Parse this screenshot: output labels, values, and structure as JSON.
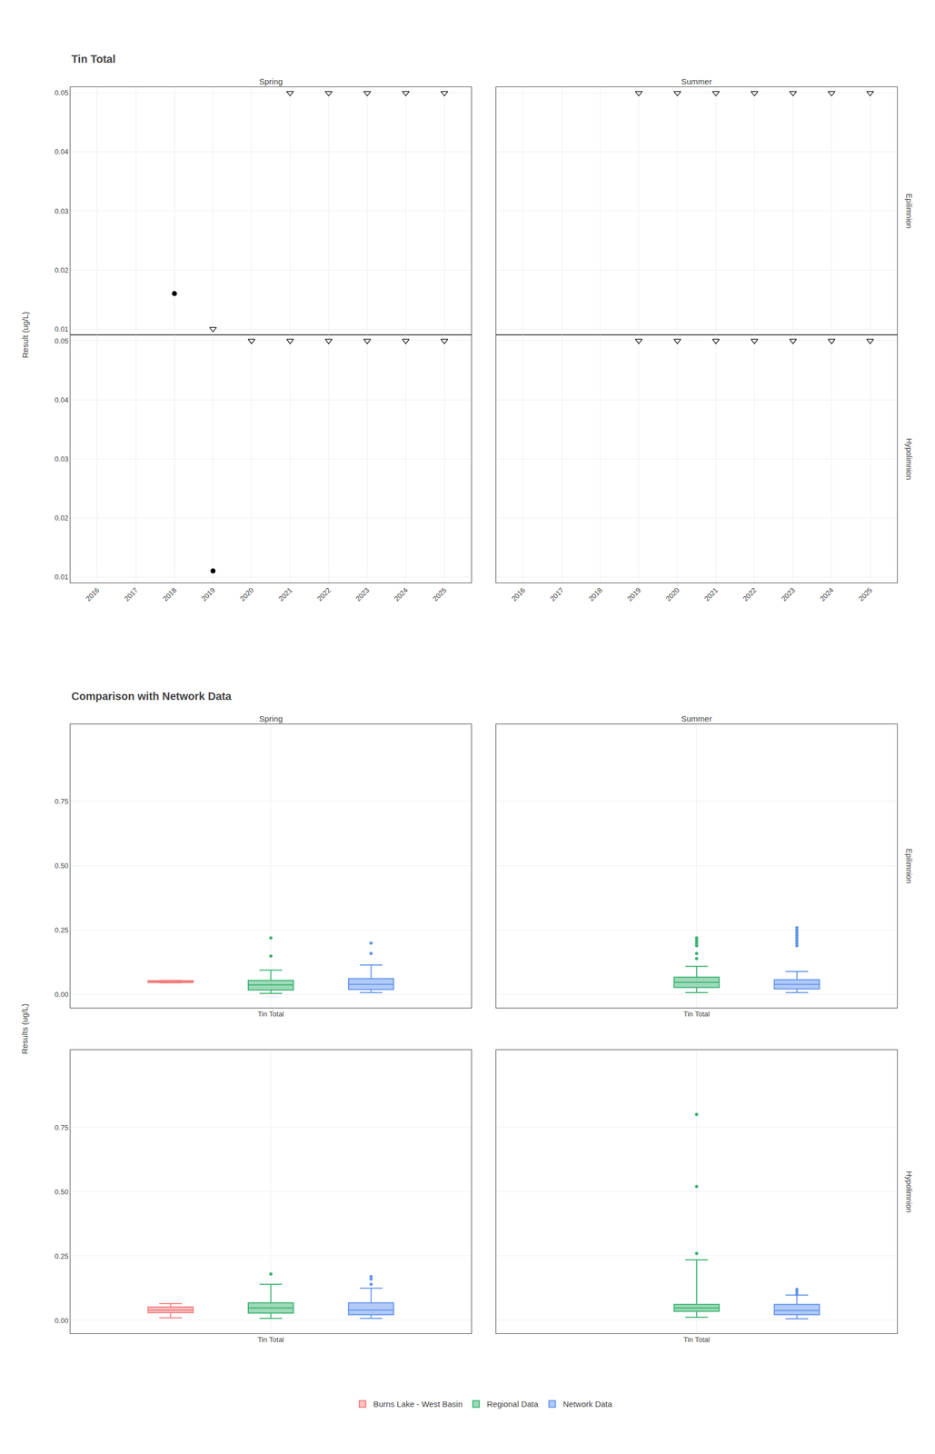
{
  "chart_data": [
    {
      "type": "scatter",
      "title": "Tin Total",
      "ylabel": "Result (ug/L)",
      "columns": [
        "Spring",
        "Summer"
      ],
      "rows": [
        "Epilimnion",
        "Hypolimnion"
      ],
      "xlim": [
        2015.3,
        2025.7
      ],
      "xticks": [
        2016,
        2017,
        2018,
        2019,
        2020,
        2021,
        2022,
        2023,
        2024,
        2025
      ],
      "ylim": [
        0.009,
        0.051
      ],
      "yticks": [
        0.01,
        0.02,
        0.03,
        0.04,
        0.05
      ],
      "grid": true,
      "panels": [
        [
          {
            "series": [
              {
                "marker": "circle",
                "color": "#000000",
                "x": [
                  2018
                ],
                "values": [
                  0.016
                ]
              },
              {
                "marker": "triangle-down-open",
                "color": "#000000",
                "x": [
                  2019,
                  2021,
                  2022,
                  2023,
                  2024,
                  2025
                ],
                "values": [
                  0.01,
                  0.05,
                  0.05,
                  0.05,
                  0.05,
                  0.05
                ]
              }
            ]
          },
          {
            "series": [
              {
                "marker": "triangle-down-open",
                "color": "#000000",
                "x": [
                  2019,
                  2020,
                  2021,
                  2022,
                  2023,
                  2024,
                  2025
                ],
                "values": [
                  0.05,
                  0.05,
                  0.05,
                  0.05,
                  0.05,
                  0.05,
                  0.05
                ]
              }
            ]
          }
        ],
        [
          {
            "series": [
              {
                "marker": "circle",
                "color": "#000000",
                "x": [
                  2019
                ],
                "values": [
                  0.011
                ]
              },
              {
                "marker": "triangle-down-open",
                "color": "#000000",
                "x": [
                  2020,
                  2021,
                  2022,
                  2023,
                  2024,
                  2025
                ],
                "values": [
                  0.05,
                  0.05,
                  0.05,
                  0.05,
                  0.05,
                  0.05
                ]
              }
            ]
          },
          {
            "series": [
              {
                "marker": "triangle-down-open",
                "color": "#000000",
                "x": [
                  2019,
                  2020,
                  2021,
                  2022,
                  2023,
                  2024,
                  2025
                ],
                "values": [
                  0.05,
                  0.05,
                  0.05,
                  0.05,
                  0.05,
                  0.05,
                  0.05
                ]
              }
            ]
          }
        ]
      ]
    },
    {
      "type": "box",
      "title": "Comparison with Network Data",
      "ylabel": "Results (ug/L)",
      "columns": [
        "Spring",
        "Summer"
      ],
      "rows": [
        "Epilimnion",
        "Hypolimnion"
      ],
      "categories": [
        "Tin Total"
      ],
      "ylim": [
        -0.05,
        1.05
      ],
      "yticks": [
        {
          "value": 0.0,
          "label": "0.00"
        },
        0.25,
        {
          "value": 0.5,
          "label": "0.50"
        },
        0.75
      ],
      "grid": true,
      "legend": "bottom",
      "panels": [
        [
          {
            "series": [
              {
                "name": "Burns Lake - West Basin",
                "color": "#F08080",
                "median": 0.05,
                "q1": 0.047,
                "q3": 0.054,
                "whislo": 0.046,
                "whishi": 0.055,
                "fliers": []
              },
              {
                "name": "Regional Data",
                "color": "#3CB371",
                "median": 0.038,
                "q1": 0.018,
                "q3": 0.055,
                "whislo": 0.005,
                "whishi": 0.095,
                "fliers": [
                  0.15,
                  0.22
                ]
              },
              {
                "name": "Network Data",
                "color": "#6495ED",
                "median": 0.04,
                "q1": 0.02,
                "q3": 0.062,
                "whislo": 0.008,
                "whishi": 0.115,
                "fliers": [
                  0.16,
                  0.2
                ]
              }
            ]
          },
          {
            "series": [
              {
                "name": "Regional Data",
                "color": "#3CB371",
                "median": 0.048,
                "q1": 0.028,
                "q3": 0.068,
                "whislo": 0.008,
                "whishi": 0.11,
                "fliers": [
                  0.14,
                  0.16,
                  0.19,
                  0.2,
                  0.21,
                  0.22
                ]
              },
              {
                "name": "Network Data",
                "color": "#6495ED",
                "median": 0.04,
                "q1": 0.022,
                "q3": 0.058,
                "whislo": 0.008,
                "whishi": 0.09,
                "fliers": [
                  0.19,
                  0.2,
                  0.21,
                  0.22,
                  0.23,
                  0.24,
                  0.25,
                  0.26
                ]
              }
            ]
          }
        ],
        [
          {
            "series": [
              {
                "name": "Burns Lake - West Basin",
                "color": "#F08080",
                "median": 0.04,
                "q1": 0.03,
                "q3": 0.052,
                "whislo": 0.01,
                "whishi": 0.065,
                "fliers": []
              },
              {
                "name": "Regional Data",
                "color": "#3CB371",
                "median": 0.048,
                "q1": 0.028,
                "q3": 0.068,
                "whislo": 0.008,
                "whishi": 0.14,
                "fliers": [
                  0.18
                ]
              },
              {
                "name": "Network Data",
                "color": "#6495ED",
                "median": 0.04,
                "q1": 0.022,
                "q3": 0.068,
                "whislo": 0.008,
                "whishi": 0.125,
                "fliers": [
                  0.14,
                  0.16,
                  0.17
                ]
              }
            ]
          },
          {
            "series": [
              {
                "name": "Regional Data",
                "color": "#3CB371",
                "median": 0.048,
                "q1": 0.035,
                "q3": 0.062,
                "whislo": 0.012,
                "whishi": 0.235,
                "fliers": [
                  0.26,
                  0.52,
                  0.8
                ]
              },
              {
                "name": "Network Data",
                "color": "#6495ED",
                "median": 0.038,
                "q1": 0.022,
                "q3": 0.062,
                "whislo": 0.006,
                "whishi": 0.098,
                "fliers": [
                  0.1,
                  0.11,
                  0.12
                ]
              }
            ]
          }
        ]
      ]
    }
  ]
}
